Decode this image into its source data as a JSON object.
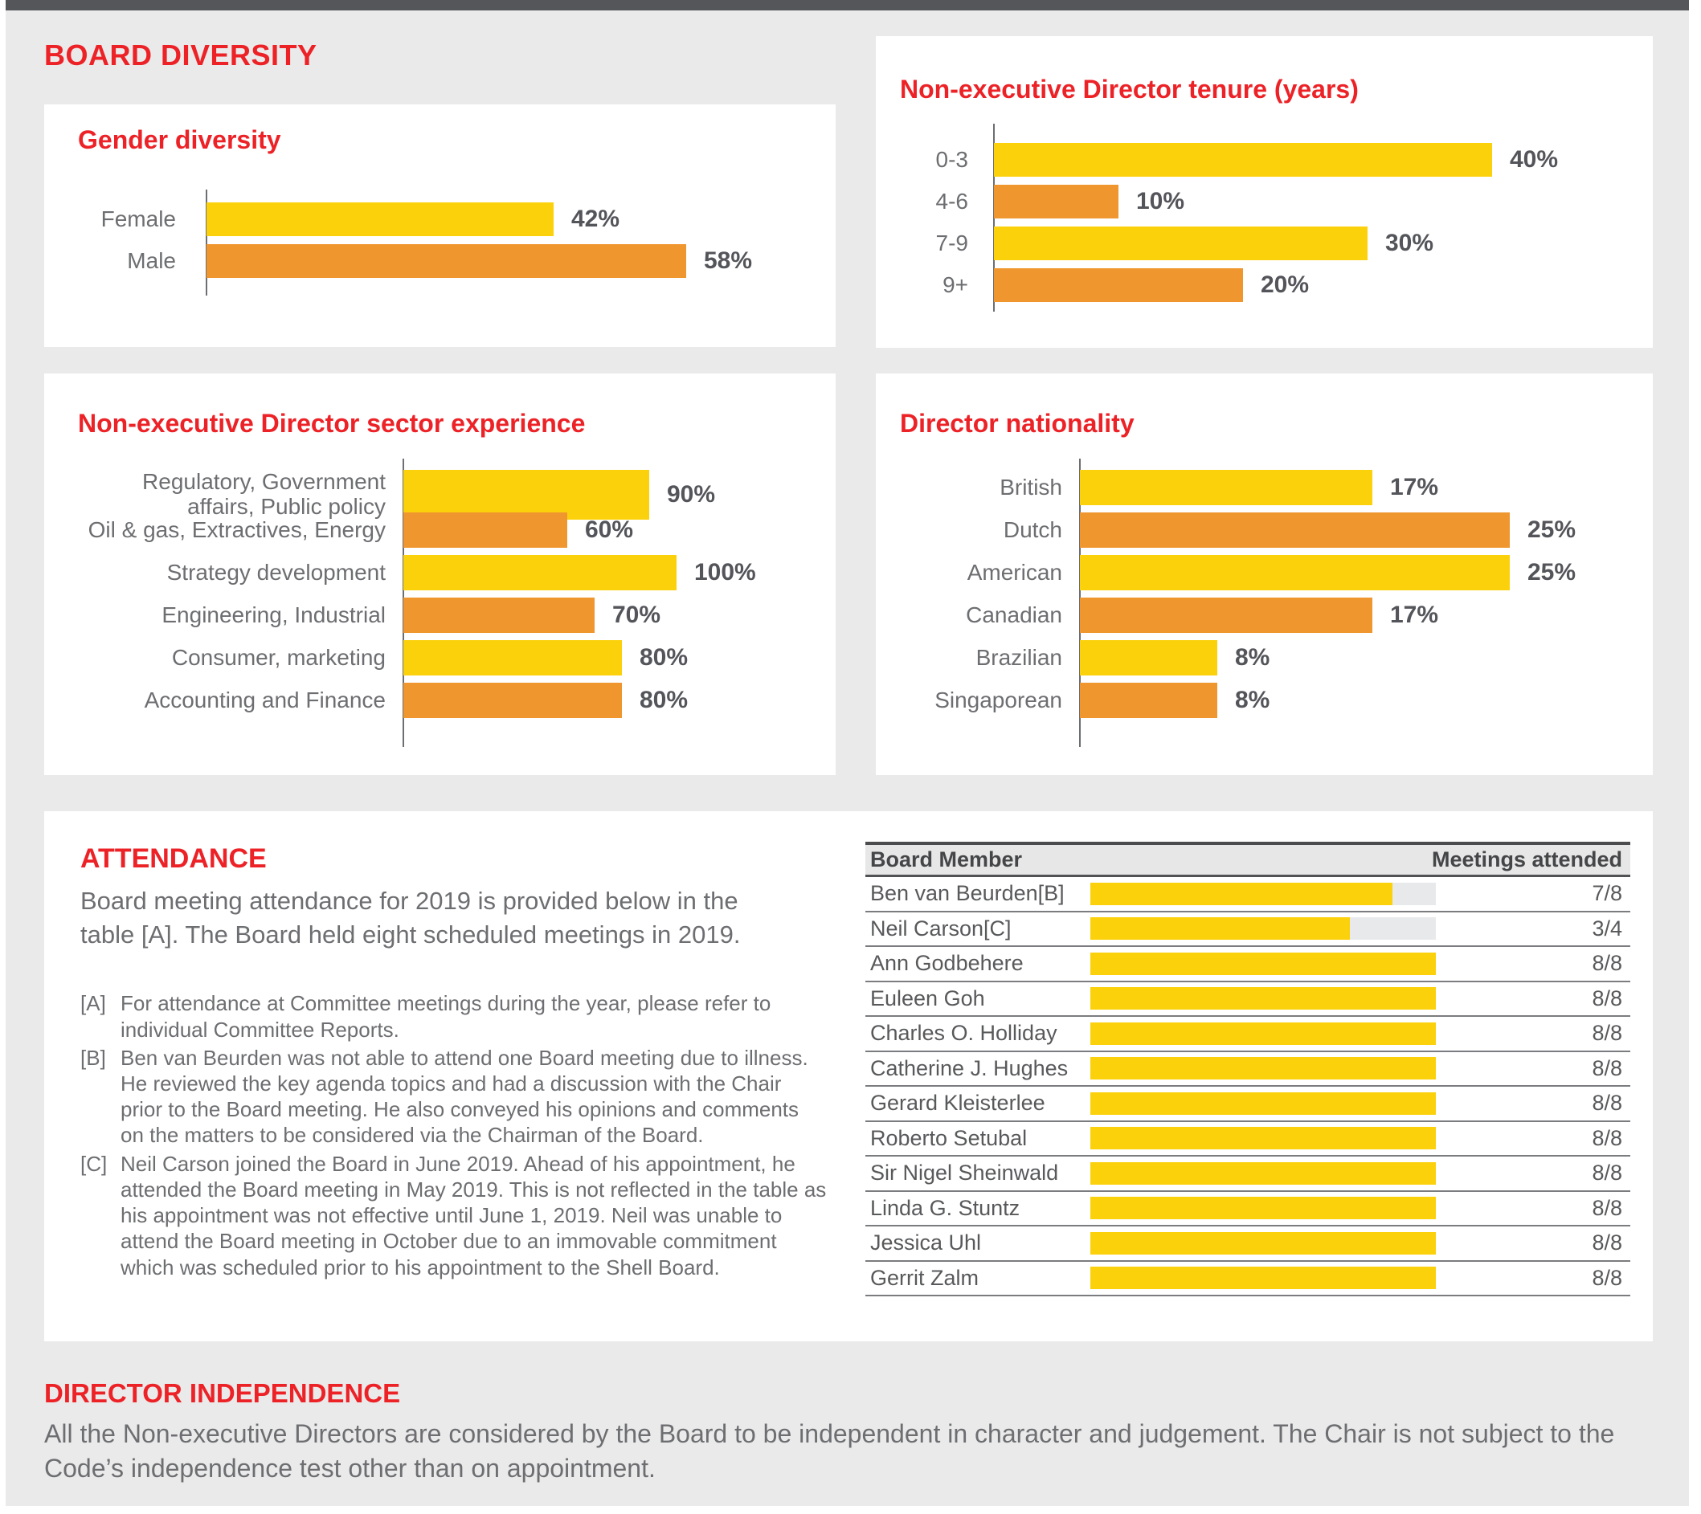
{
  "board_diversity_title": "BOARD DIVERSITY",
  "colors": {
    "red": "#EC2227",
    "yellow": "#FBD10C",
    "orange": "#F0962F",
    "dark_top_bar": "#55565A",
    "page_background": "#EAEAEA",
    "text_gray": "#6D6E71",
    "bar_track_gray": "#E8E9EA"
  },
  "chart_data": [
    {
      "type": "bar",
      "orientation": "horizontal",
      "title": "Gender diversity",
      "categories": [
        "Female",
        "Male"
      ],
      "values": [
        42,
        58
      ],
      "value_labels": [
        "42%",
        "58%"
      ],
      "unit": "%",
      "bar_colors": [
        "#FBD10C",
        "#F0962F"
      ],
      "grid": false,
      "legend": "none"
    },
    {
      "type": "bar",
      "orientation": "horizontal",
      "title": "Non-executive Director tenure (years)",
      "categories": [
        "0-3",
        "4-6",
        "7-9",
        "9+"
      ],
      "values": [
        40,
        10,
        30,
        20
      ],
      "value_labels": [
        "40%",
        "10%",
        "30%",
        "20%"
      ],
      "unit": "%",
      "bar_colors": [
        "#FBD10C",
        "#F0962F",
        "#FBD10C",
        "#F0962F"
      ],
      "grid": false,
      "legend": "none"
    },
    {
      "type": "bar",
      "orientation": "horizontal",
      "title": "Non-executive Director sector experience",
      "categories": [
        "Regulatory, Government\naffairs, Public policy",
        "Oil & gas, Extractives, Energy",
        "Strategy development",
        "Engineering, Industrial",
        "Consumer, marketing",
        "Accounting and Finance"
      ],
      "values": [
        90,
        60,
        100,
        70,
        80,
        80
      ],
      "value_labels": [
        "90%",
        "60%",
        "100%",
        "70%",
        "80%",
        "80%"
      ],
      "unit": "%",
      "bar_colors": [
        "#FBD10C",
        "#F0962F",
        "#FBD10C",
        "#F0962F",
        "#FBD10C",
        "#F0962F"
      ],
      "grid": false,
      "legend": "none"
    },
    {
      "type": "bar",
      "orientation": "horizontal",
      "title": "Director nationality",
      "categories": [
        "British",
        "Dutch",
        "American",
        "Canadian",
        "Brazilian",
        "Singaporean"
      ],
      "values": [
        17,
        25,
        25,
        17,
        8,
        8
      ],
      "value_labels": [
        "17%",
        "25%",
        "25%",
        "17%",
        "8%",
        "8%"
      ],
      "unit": "%",
      "bar_colors": [
        "#FBD10C",
        "#F0962F",
        "#FBD10C",
        "#F0962F",
        "#FBD10C",
        "#F0962F"
      ],
      "grid": false,
      "legend": "none"
    },
    {
      "type": "table",
      "columns": [
        "Board Member",
        "Meetings attended"
      ],
      "rows": [
        {
          "name": "Ben van Beurden[B]",
          "attended": 7,
          "total": 8,
          "label": "7/8"
        },
        {
          "name": "Neil Carson[C]",
          "attended": 3,
          "total": 4,
          "label": "3/4"
        },
        {
          "name": "Ann Godbehere",
          "attended": 8,
          "total": 8,
          "label": "8/8"
        },
        {
          "name": "Euleen Goh",
          "attended": 8,
          "total": 8,
          "label": "8/8"
        },
        {
          "name": "Charles O. Holliday",
          "attended": 8,
          "total": 8,
          "label": "8/8"
        },
        {
          "name": "Catherine J. Hughes",
          "attended": 8,
          "total": 8,
          "label": "8/8"
        },
        {
          "name": "Gerard Kleisterlee",
          "attended": 8,
          "total": 8,
          "label": "8/8"
        },
        {
          "name": "Roberto Setubal",
          "attended": 8,
          "total": 8,
          "label": "8/8"
        },
        {
          "name": "Sir Nigel Sheinwald",
          "attended": 8,
          "total": 8,
          "label": "8/8"
        },
        {
          "name": "Linda G. Stuntz",
          "attended": 8,
          "total": 8,
          "label": "8/8"
        },
        {
          "name": "Jessica Uhl",
          "attended": 8,
          "total": 8,
          "label": "8/8"
        },
        {
          "name": "Gerrit Zalm",
          "attended": 8,
          "total": 8,
          "label": "8/8"
        }
      ]
    }
  ],
  "attendance": {
    "heading": "ATTENDANCE",
    "intro": "Board meeting attendance for 2019 is provided below in the table [A]. The Board held eight scheduled meetings in 2019.",
    "footnotes": [
      {
        "marker": "[A]",
        "text": "For attendance at Committee meetings during the year, please refer to individual Committee Reports."
      },
      {
        "marker": "[B]",
        "text": "Ben van Beurden was not able to attend one Board meeting due to illness. He reviewed the key agenda topics and had a discussion with the Chair prior to the Board meeting. He also conveyed his opinions and comments on the matters to be considered via the Chairman of the Board."
      },
      {
        "marker": "[C]",
        "text": "Neil Carson joined the Board in June 2019. Ahead of his appointment, he attended the Board meeting in May 2019. This is not reflected in the table as his appointment was not effective until June 1, 2019. Neil was unable to attend the Board meeting in October due to an immovable commitment which was scheduled prior to his appointment to the Shell Board."
      }
    ]
  },
  "independence": {
    "title": "DIRECTOR INDEPENDENCE",
    "text": "All the Non-executive Directors are considered by the Board to be independent in character and judgement. The Chair is not subject to the Code’s independence test other than on appointment."
  }
}
